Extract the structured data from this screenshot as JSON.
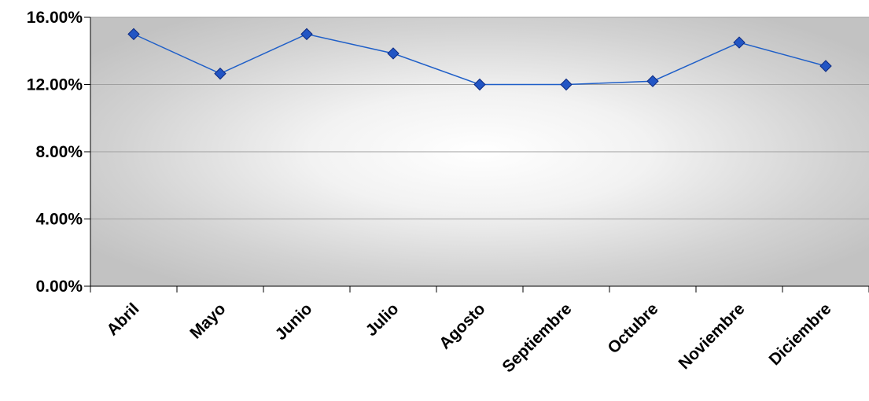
{
  "chart_data": {
    "type": "line",
    "categories": [
      "Abril",
      "Mayo",
      "Junio",
      "Julio",
      "Agosto",
      "Septiembre",
      "Octubre",
      "Noviembre",
      "Diciembre"
    ],
    "series": [
      {
        "values": [
          15.0,
          12.65,
          15.0,
          13.85,
          12.0,
          12.0,
          12.2,
          14.5,
          13.1
        ]
      }
    ],
    "ylim": [
      0,
      16
    ],
    "yticks": [
      "0.00%",
      "4.00%",
      "8.00%",
      "12.00%",
      "16.00%"
    ],
    "ytick_values": [
      0,
      4,
      8,
      12,
      16
    ],
    "grid": true,
    "line_color": "#1f5fc8",
    "marker_color": "#2255c4",
    "marker_edge_color": "#0d2a80",
    "plot_background": "radial-gradient-gray"
  }
}
